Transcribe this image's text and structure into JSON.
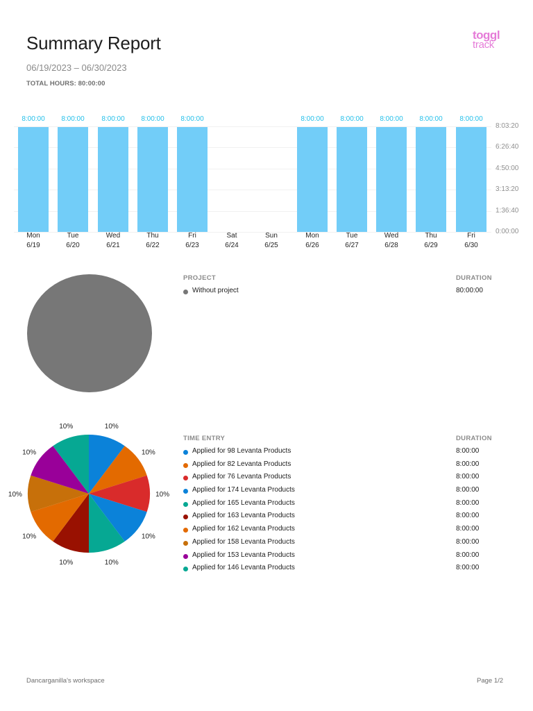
{
  "header": {
    "title": "Summary Report",
    "date_range": "06/19/2023 – 06/30/2023",
    "total_hours": "TOTAL HOURS: 80:00:00",
    "logo_line1": "toggl",
    "logo_line2": "track"
  },
  "chart_data": [
    {
      "type": "bar",
      "title": "",
      "categories": [
        "Mon 6/19",
        "Tue 6/20",
        "Wed 6/21",
        "Thu 6/22",
        "Fri 6/23",
        "Sat 6/24",
        "Sun 6/25",
        "Mon 6/26",
        "Tue 6/27",
        "Wed 6/28",
        "Thu 6/29",
        "Fri 6/30"
      ],
      "days": [
        {
          "day": "Mon",
          "date": "6/19",
          "value": "8:00:00",
          "hours": 8
        },
        {
          "day": "Tue",
          "date": "6/20",
          "value": "8:00:00",
          "hours": 8
        },
        {
          "day": "Wed",
          "date": "6/21",
          "value": "8:00:00",
          "hours": 8
        },
        {
          "day": "Thu",
          "date": "6/22",
          "value": "8:00:00",
          "hours": 8
        },
        {
          "day": "Fri",
          "date": "6/23",
          "value": "8:00:00",
          "hours": 8
        },
        {
          "day": "Sat",
          "date": "6/24",
          "value": "",
          "hours": 0
        },
        {
          "day": "Sun",
          "date": "6/25",
          "value": "",
          "hours": 0
        },
        {
          "day": "Mon",
          "date": "6/26",
          "value": "8:00:00",
          "hours": 8
        },
        {
          "day": "Tue",
          "date": "6/27",
          "value": "8:00:00",
          "hours": 8
        },
        {
          "day": "Wed",
          "date": "6/28",
          "value": "8:00:00",
          "hours": 8
        },
        {
          "day": "Thu",
          "date": "6/29",
          "value": "8:00:00",
          "hours": 8
        },
        {
          "day": "Fri",
          "date": "6/30",
          "value": "8:00:00",
          "hours": 8
        }
      ],
      "values": [
        8,
        8,
        8,
        8,
        8,
        0,
        0,
        8,
        8,
        8,
        8,
        8
      ],
      "yticks": [
        "0:00:00",
        "1:36:40",
        "3:13:20",
        "4:50:00",
        "6:26:40",
        "8:03:20"
      ],
      "ylim": [
        0,
        8.0556
      ],
      "xlabel": "",
      "ylabel": "",
      "grid": true,
      "bar_color": "#72cdf8",
      "label_color": "#26c0ea"
    },
    {
      "type": "pie",
      "title": "Project",
      "categories": [
        "Without project"
      ],
      "values": [
        100
      ],
      "colors": [
        "#777777"
      ]
    },
    {
      "type": "pie",
      "title": "Time Entry",
      "categories": [
        "Applied for 98 Levanta Products",
        "Applied for 82 Levanta Products",
        "Applied for 76 Levanta Products",
        "Applied for 174 Levanta Products",
        "Applied for 165 Levanta Products",
        "Applied for 163 Levanta Products",
        "Applied for 162 Levanta Products",
        "Applied for 158 Levanta Products",
        "Applied for 153 Levanta Products",
        "Applied for 146 Levanta Products"
      ],
      "values": [
        10,
        10,
        10,
        10,
        10,
        10,
        10,
        10,
        10,
        10
      ],
      "labels": [
        "10%",
        "10%",
        "10%",
        "10%",
        "10%",
        "10%",
        "10%",
        "10%",
        "10%",
        "10%"
      ],
      "colors": [
        "#0b82d9",
        "#e36a00",
        "#d92b2b",
        "#0b82d9",
        "#06a893",
        "#991101",
        "#e36a00",
        "#c7700a",
        "#990099",
        "#06a893"
      ]
    }
  ],
  "project_table": {
    "header_name": "PROJECT",
    "header_duration": "DURATION",
    "rows": [
      {
        "name": "Without project",
        "duration": "80:00:00",
        "color": "#777777"
      }
    ]
  },
  "entry_table": {
    "header_name": "TIME ENTRY",
    "header_duration": "DURATION",
    "rows": [
      {
        "name": "Applied for 98 Levanta Products",
        "duration": "8:00:00",
        "color": "#0b82d9"
      },
      {
        "name": "Applied for 82 Levanta Products",
        "duration": "8:00:00",
        "color": "#e36a00"
      },
      {
        "name": "Applied for 76 Levanta Products",
        "duration": "8:00:00",
        "color": "#d92b2b"
      },
      {
        "name": "Applied for 174 Levanta Products",
        "duration": "8:00:00",
        "color": "#0b82d9"
      },
      {
        "name": "Applied for 165 Levanta Products",
        "duration": "8:00:00",
        "color": "#06a893"
      },
      {
        "name": "Applied for 163 Levanta Products",
        "duration": "8:00:00",
        "color": "#991101"
      },
      {
        "name": "Applied for 162 Levanta Products",
        "duration": "8:00:00",
        "color": "#e36a00"
      },
      {
        "name": "Applied for 158 Levanta Products",
        "duration": "8:00:00",
        "color": "#c7700a"
      },
      {
        "name": "Applied for 153 Levanta Products",
        "duration": "8:00:00",
        "color": "#990099"
      },
      {
        "name": "Applied for 146 Levanta Products",
        "duration": "8:00:00",
        "color": "#06a893"
      }
    ]
  },
  "footer": {
    "workspace": "Dancarganilla's workspace",
    "page": "Page 1/2"
  }
}
